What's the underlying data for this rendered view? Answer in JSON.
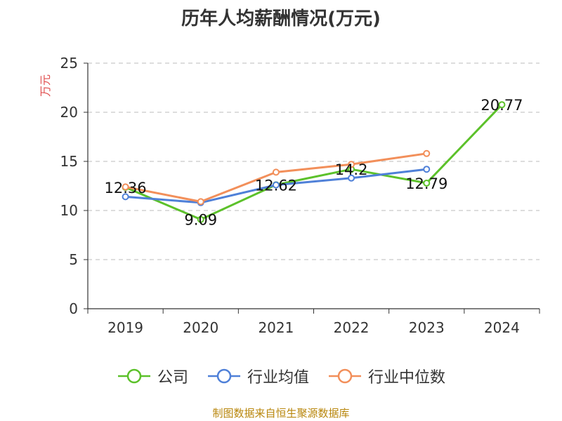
{
  "chart_data": {
    "type": "line",
    "title": "历年人均薪酬情况(万元)",
    "ylabel": "万元",
    "categories": [
      "2019",
      "2020",
      "2021",
      "2022",
      "2023",
      "2024"
    ],
    "ylim": [
      0,
      25
    ],
    "yticks": [
      0,
      5,
      10,
      15,
      20,
      25
    ],
    "grid": true,
    "legend_position": "bottom",
    "series": [
      {
        "name": "公司",
        "color": "#5cc12a",
        "values": [
          12.36,
          9.09,
          12.62,
          14.2,
          12.79,
          20.77
        ],
        "labels": [
          "12.36",
          "9.09",
          "12.62",
          "14.2",
          "12.79",
          "20.77"
        ]
      },
      {
        "name": "行业均值",
        "color": "#4f80d8",
        "values": [
          11.4,
          10.8,
          12.6,
          13.3,
          14.2,
          null
        ]
      },
      {
        "name": "行业中位数",
        "color": "#f28f5a",
        "values": [
          12.4,
          10.9,
          13.9,
          14.7,
          15.8,
          null
        ]
      }
    ]
  },
  "source_note": "制图数据来自恒生聚源数据库"
}
